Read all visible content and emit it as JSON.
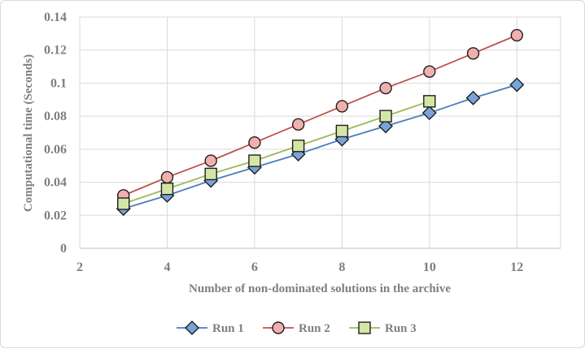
{
  "chart_data": {
    "type": "line",
    "xlabel": "Number of non-dominated solutions in the archive",
    "ylabel": "Computational time (Seconds)",
    "xlim": [
      2,
      13
    ],
    "ylim": [
      0,
      0.14
    ],
    "x_ticks": [
      "2",
      "4",
      "6",
      "8",
      "10",
      "12"
    ],
    "y_ticks": [
      "0",
      "0.02",
      "0.04",
      "0.06",
      "0.08",
      "0.1",
      "0.12",
      "0.14"
    ],
    "grid": true,
    "legend_position": "bottom",
    "series": [
      {
        "name": "Run 1",
        "marker": "diamond",
        "color": "#4a7ebb",
        "fill": "#7aa3d9",
        "x": [
          3,
          4,
          5,
          6,
          7,
          8,
          9,
          10,
          11,
          12
        ],
        "values": [
          0.024,
          0.032,
          0.041,
          0.049,
          0.057,
          0.066,
          0.074,
          0.082,
          0.091,
          0.099
        ]
      },
      {
        "name": "Run 2",
        "marker": "circle",
        "color": "#c0504d",
        "fill": "#f0b0ae",
        "x": [
          3,
          4,
          5,
          6,
          7,
          8,
          9,
          10,
          11,
          12
        ],
        "values": [
          0.032,
          0.043,
          0.053,
          0.064,
          0.075,
          0.086,
          0.097,
          0.107,
          0.118,
          0.129
        ]
      },
      {
        "name": "Run 3",
        "marker": "square",
        "color": "#9bbb59",
        "fill": "#d4e6a5",
        "x": [
          3,
          4,
          5,
          6,
          7,
          8,
          9,
          10
        ],
        "values": [
          0.027,
          0.036,
          0.045,
          0.053,
          0.062,
          0.071,
          0.08,
          0.089
        ]
      }
    ]
  }
}
